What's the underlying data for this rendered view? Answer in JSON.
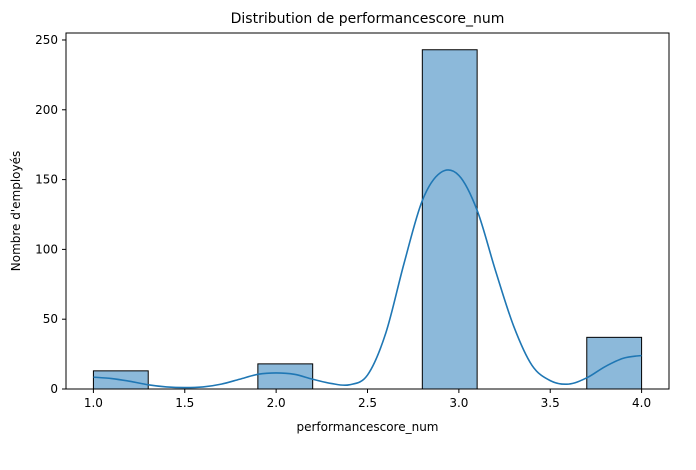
{
  "chart_data": {
    "type": "bar",
    "title": "Distribution de performancescore_num",
    "xlabel": "performancescore_num",
    "ylabel": "Nombre d'employés",
    "xlim": [
      0.85,
      4.15
    ],
    "ylim": [
      0,
      255
    ],
    "xticks": [
      "1.0",
      "1.5",
      "2.0",
      "2.5",
      "3.0",
      "3.5",
      "4.0"
    ],
    "yticks": [
      "0",
      "50",
      "100",
      "150",
      "200",
      "250"
    ],
    "grid": false,
    "legend": "none",
    "bins": [
      {
        "x0": 1.0,
        "x1": 1.3,
        "value": 13
      },
      {
        "x0": 1.9,
        "x1": 2.2,
        "value": 18
      },
      {
        "x0": 2.8,
        "x1": 3.1,
        "value": 243
      },
      {
        "x0": 3.7,
        "x1": 4.0,
        "value": 37
      }
    ],
    "kde": {
      "x": [
        1.0,
        1.1,
        1.2,
        1.3,
        1.4,
        1.5,
        1.6,
        1.7,
        1.8,
        1.9,
        2.0,
        2.1,
        2.2,
        2.3,
        2.4,
        2.5,
        2.6,
        2.7,
        2.8,
        2.9,
        3.0,
        3.1,
        3.2,
        3.3,
        3.4,
        3.5,
        3.6,
        3.7,
        3.8,
        3.9,
        4.0
      ],
      "y": [
        8.5,
        7.5,
        5.5,
        3,
        1.5,
        1,
        1.5,
        3.5,
        7,
        10.5,
        11.5,
        10.5,
        7,
        4,
        3,
        10,
        40,
        90,
        135,
        155,
        153,
        128,
        85,
        45,
        17,
        6,
        3.5,
        8,
        16,
        22,
        24
      ]
    },
    "colors": {
      "bar_fill": "#8cb9da",
      "bar_edge": "#000000",
      "line": "#1f77b4"
    }
  }
}
